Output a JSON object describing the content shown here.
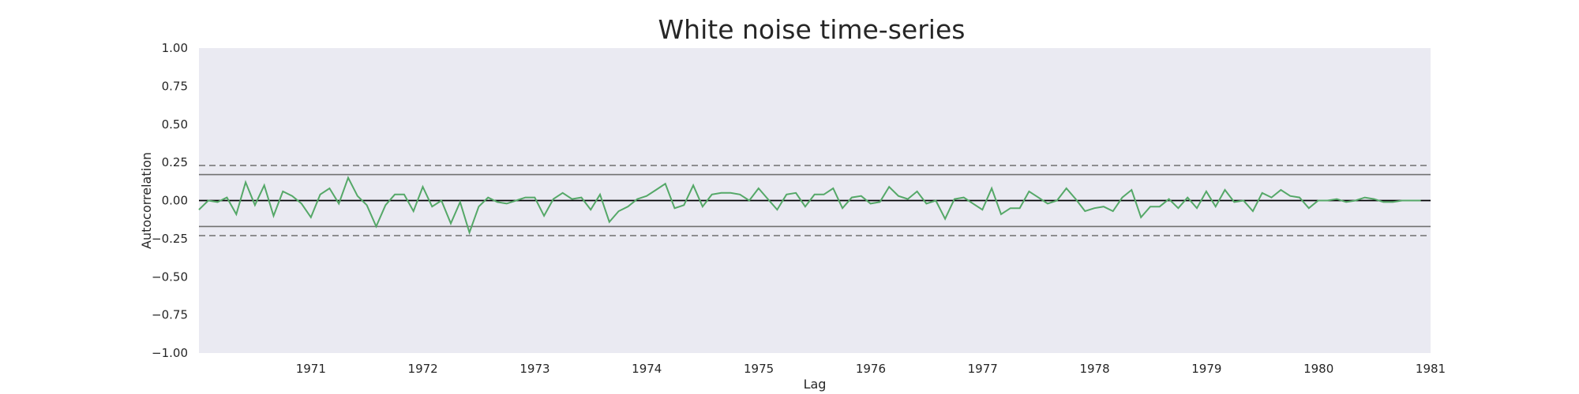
{
  "chart_data": {
    "type": "line",
    "title": "White noise time-series",
    "xlabel": "Lag",
    "ylabel": "Autocorrelation",
    "xlim": [
      1970.0,
      1981.0
    ],
    "ylim": [
      -1.0,
      1.0
    ],
    "yticks": [
      1.0,
      0.75,
      0.5,
      0.25,
      0.0,
      -0.25,
      -0.5,
      -0.75,
      -1.0
    ],
    "ytick_labels": [
      "1.00",
      "0.75",
      "0.50",
      "0.25",
      "0.00",
      "−0.25",
      "−0.50",
      "−0.75",
      "−1.00"
    ],
    "xticks": [
      1971,
      1972,
      1973,
      1974,
      1975,
      1976,
      1977,
      1978,
      1979,
      1980,
      1981
    ],
    "xtick_labels": [
      "1971",
      "1972",
      "1973",
      "1974",
      "1975",
      "1976",
      "1977",
      "1978",
      "1979",
      "1980",
      "1981"
    ],
    "grid": false,
    "background_color": "#eaeaf2",
    "line_color": "#55a868",
    "reference_lines": {
      "zero": 0.0,
      "confidence_99": [
        0.23,
        -0.23
      ],
      "confidence_95": [
        0.17,
        -0.17
      ]
    },
    "series": [
      {
        "x_start": 1970.0,
        "x_step": 0.0833,
        "values": [
          -0.06,
          0.0,
          -0.01,
          0.02,
          -0.09,
          0.12,
          -0.03,
          0.1,
          -0.1,
          0.06,
          0.03,
          -0.02,
          -0.11,
          0.04,
          0.08,
          -0.02,
          0.15,
          0.03,
          -0.03,
          -0.17,
          -0.03,
          0.04,
          0.04,
          -0.07,
          0.09,
          -0.04,
          0.0,
          -0.15,
          -0.01,
          -0.21,
          -0.04,
          0.02,
          -0.01,
          -0.02,
          0.0,
          0.02,
          0.02,
          -0.1,
          0.01,
          0.05,
          0.01,
          0.02,
          -0.06,
          0.04,
          -0.14,
          -0.07,
          -0.04,
          0.01,
          0.03,
          0.07,
          0.11,
          -0.05,
          -0.03,
          0.1,
          -0.04,
          0.04,
          0.05,
          0.05,
          0.04,
          0.0,
          0.08,
          0.01,
          -0.06,
          0.04,
          0.05,
          -0.04,
          0.04,
          0.04,
          0.08,
          -0.05,
          0.02,
          0.03,
          -0.02,
          -0.01,
          0.09,
          0.03,
          0.01,
          0.06,
          -0.02,
          0.0,
          -0.12,
          0.01,
          0.02,
          -0.02,
          -0.06,
          0.08,
          -0.09,
          -0.05,
          -0.05,
          0.06,
          0.02,
          -0.02,
          0.0,
          0.08,
          0.01,
          -0.07,
          -0.05,
          -0.04,
          -0.07,
          0.02,
          0.07,
          -0.11,
          -0.04,
          -0.04,
          0.01,
          -0.05,
          0.02,
          -0.05,
          0.06,
          -0.04,
          0.07,
          -0.01,
          0.0,
          -0.07,
          0.05,
          0.02,
          0.07,
          0.03,
          0.02,
          -0.05,
          0.0,
          0.0,
          0.01,
          -0.01,
          0.0,
          0.02,
          0.01,
          -0.01,
          -0.01,
          0.0,
          0.0,
          0.0
        ]
      }
    ]
  }
}
